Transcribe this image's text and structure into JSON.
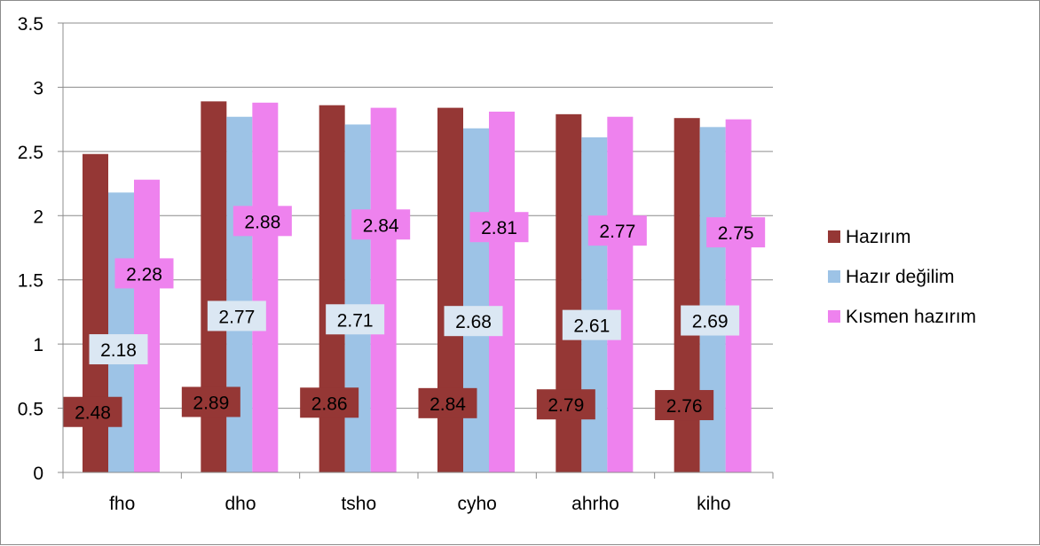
{
  "chart_data": {
    "type": "bar",
    "categories": [
      "fho",
      "dho",
      "tsho",
      "cyho",
      "ahrho",
      "kiho"
    ],
    "series": [
      {
        "name": "Hazırım",
        "color": "#953735",
        "label_bg": "#953735",
        "values": [
          2.48,
          2.89,
          2.86,
          2.84,
          2.79,
          2.76
        ]
      },
      {
        "name": "Hazır değilim",
        "color": "#9dc3e6",
        "label_bg": "#dbe7f3",
        "values": [
          2.18,
          2.77,
          2.71,
          2.68,
          2.61,
          2.69
        ]
      },
      {
        "name": "Kısmen hazırım",
        "color": "#ee82ee",
        "label_bg": "#ee82ee",
        "values": [
          2.28,
          2.88,
          2.84,
          2.81,
          2.77,
          2.75
        ]
      }
    ],
    "yticks": [
      "0",
      "0.5",
      "1",
      "1.5",
      "2",
      "2.5",
      "3",
      "3.5"
    ],
    "ylim": [
      0,
      3.5
    ],
    "grid": true,
    "legend_position": "right",
    "title": "",
    "xlabel": "",
    "ylabel": ""
  }
}
